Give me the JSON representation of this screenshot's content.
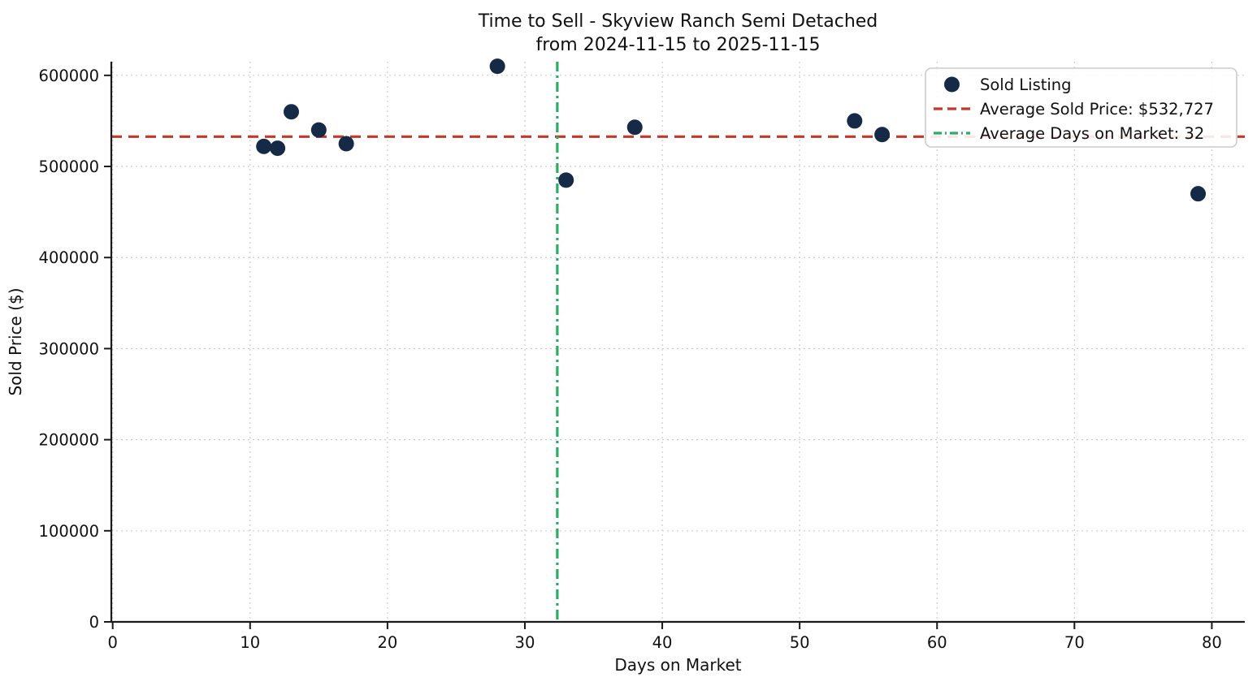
{
  "chart_data": {
    "type": "scatter",
    "title": "Time to Sell - Skyview Ranch Semi Detached",
    "subtitle": "from 2024-11-15 to 2025-11-15",
    "xlabel": "Days on Market",
    "ylabel": "Sold Price ($)",
    "xlim": [
      -0.1,
      82.4
    ],
    "ylim": [
      0,
      615000
    ],
    "x_ticks": [
      0,
      10,
      20,
      30,
      40,
      50,
      60,
      70,
      80
    ],
    "y_ticks": [
      0,
      100000,
      200000,
      300000,
      400000,
      500000,
      600000
    ],
    "grid": true,
    "grid_style": "dotted",
    "points": [
      {
        "x": 11,
        "y": 522000
      },
      {
        "x": 12,
        "y": 520000
      },
      {
        "x": 13,
        "y": 560000
      },
      {
        "x": 15,
        "y": 540000
      },
      {
        "x": 17,
        "y": 525000
      },
      {
        "x": 28,
        "y": 610000
      },
      {
        "x": 33,
        "y": 485000
      },
      {
        "x": 38,
        "y": 543000
      },
      {
        "x": 54,
        "y": 550000
      },
      {
        "x": 56,
        "y": 535000
      },
      {
        "x": 79,
        "y": 470000
      }
    ],
    "avg_sold_price": 532727,
    "avg_days_on_market": 32.36,
    "legend": {
      "position": "upper-right",
      "entries": [
        {
          "label": "Sold Listing",
          "marker": "dot",
          "color": "#152a47"
        },
        {
          "label": "Average Sold Price: $532,727",
          "marker": "dashed-line",
          "color": "#c0392b"
        },
        {
          "label": "Average Days on Market: 32",
          "marker": "dashdot-line",
          "color": "#2eab67"
        }
      ]
    },
    "colors": {
      "point": "#152a47",
      "avg_price_line": "#c0392b",
      "avg_days_line": "#2eab67",
      "grid": "#cdcdcd",
      "axis": "#1a1a1a",
      "legend_border": "#cccccc",
      "background": "#ffffff"
    }
  }
}
